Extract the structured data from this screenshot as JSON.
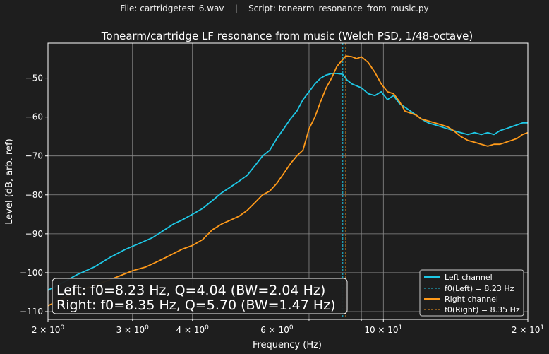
{
  "suptitle": "File: cartridgetest_6.wav    |    Script: tonearm_resonance_from_music.py",
  "chart_data": {
    "type": "line",
    "title": "Tonearm/cartridge LF resonance from music (Welch PSD, 1/48-octave)",
    "xlabel": "Frequency (Hz)",
    "ylabel": "Level (dB, arb. ref)",
    "xscale": "log",
    "xlim": [
      2,
      20
    ],
    "ylim": [
      -112,
      -41
    ],
    "grid": true,
    "x_major_ticks": [
      {
        "value": 2,
        "base": "2",
        "exp": "0"
      },
      {
        "value": 10,
        "base": "10",
        "exp": "1"
      },
      {
        "value": 20,
        "base": "2",
        "exp": "1"
      }
    ],
    "x_minor_ticks": [
      {
        "value": 3,
        "base": "3",
        "exp": "0"
      },
      {
        "value": 4,
        "base": "4",
        "exp": "0"
      },
      {
        "value": 6,
        "base": "6",
        "exp": "0"
      }
    ],
    "x_minor_unlabeled": [
      5,
      7,
      8,
      9
    ],
    "y_ticks": [
      -110,
      -100,
      -90,
      -80,
      -70,
      -60,
      -50
    ],
    "series": [
      {
        "name": "Left channel",
        "color": "#1ec8e6",
        "x": [
          2.0,
          2.15,
          2.3,
          2.5,
          2.7,
          2.9,
          3.1,
          3.3,
          3.5,
          3.65,
          3.8,
          4.0,
          4.2,
          4.4,
          4.6,
          4.8,
          5.0,
          5.2,
          5.4,
          5.6,
          5.8,
          6.0,
          6.2,
          6.4,
          6.6,
          6.8,
          7.0,
          7.2,
          7.4,
          7.6,
          7.8,
          8.0,
          8.23,
          8.4,
          8.6,
          8.8,
          9.0,
          9.3,
          9.6,
          9.9,
          10.2,
          10.5,
          10.8,
          11.1,
          11.4,
          11.7,
          12.0,
          12.4,
          12.8,
          13.2,
          13.6,
          14.0,
          14.5,
          15.0,
          15.5,
          16.0,
          16.5,
          17.0,
          17.5,
          18.0,
          18.5,
          19.0,
          19.5,
          20.0
        ],
        "y": [
          -104.5,
          -102.5,
          -100.5,
          -98.5,
          -96.0,
          -94.0,
          -92.5,
          -91.0,
          -89.0,
          -87.5,
          -86.5,
          -85.0,
          -83.5,
          -81.5,
          -79.5,
          -78.0,
          -76.5,
          -75.0,
          -72.5,
          -70.0,
          -68.5,
          -65.5,
          -63.0,
          -60.5,
          -58.5,
          -55.5,
          -53.5,
          -51.5,
          -50.0,
          -49.2,
          -48.8,
          -48.8,
          -49.0,
          -50.5,
          -51.5,
          -52.0,
          -52.5,
          -54.0,
          -54.5,
          -53.5,
          -55.5,
          -54.5,
          -56.5,
          -57.5,
          -58.5,
          -59.5,
          -60.5,
          -61.5,
          -62.0,
          -62.5,
          -63.0,
          -63.5,
          -64.0,
          -64.5,
          -64.0,
          -64.5,
          -64.0,
          -64.5,
          -63.5,
          -63.0,
          -62.5,
          -62.0,
          -61.5,
          -61.5
        ]
      },
      {
        "name": "Right channel",
        "color": "#ff9a1a",
        "x": [
          2.0,
          2.2,
          2.4,
          2.6,
          2.8,
          3.0,
          3.2,
          3.4,
          3.6,
          3.8,
          4.0,
          4.2,
          4.4,
          4.6,
          4.8,
          5.0,
          5.2,
          5.4,
          5.6,
          5.8,
          6.0,
          6.2,
          6.4,
          6.6,
          6.8,
          7.0,
          7.2,
          7.4,
          7.6,
          7.8,
          8.0,
          8.35,
          8.6,
          8.8,
          9.0,
          9.3,
          9.6,
          9.9,
          10.2,
          10.5,
          10.8,
          11.1,
          11.4,
          11.7,
          12.0,
          12.4,
          12.8,
          13.2,
          13.6,
          14.0,
          14.5,
          15.0,
          15.5,
          16.0,
          16.5,
          17.0,
          17.5,
          18.0,
          18.5,
          19.0,
          19.5,
          20.0
        ],
        "y": [
          -108.5,
          -106.0,
          -104.0,
          -102.5,
          -101.0,
          -99.5,
          -98.5,
          -97.0,
          -95.5,
          -94.0,
          -93.0,
          -91.5,
          -89.0,
          -87.5,
          -86.5,
          -85.5,
          -84.0,
          -82.0,
          -80.0,
          -79.0,
          -77.0,
          -74.5,
          -72.0,
          -70.0,
          -68.5,
          -63.0,
          -60.0,
          -56.0,
          -52.5,
          -50.0,
          -47.0,
          -44.3,
          -44.5,
          -45.0,
          -44.5,
          -46.0,
          -48.5,
          -51.5,
          -53.5,
          -54.0,
          -56.0,
          -58.5,
          -59.0,
          -59.5,
          -60.5,
          -61.0,
          -61.5,
          -62.0,
          -62.5,
          -63.5,
          -65.0,
          -66.0,
          -66.5,
          -67.0,
          -67.5,
          -67.0,
          -67.0,
          -66.5,
          -66.0,
          -65.5,
          -64.5,
          -64.0
        ]
      }
    ],
    "vlines": [
      {
        "x": 8.23,
        "color": "#1ec8e6",
        "label": "f0(Left) = 8.23 Hz"
      },
      {
        "x": 8.35,
        "color": "#ff9a1a",
        "label": "f0(Right) = 8.35 Hz"
      }
    ],
    "legend_position": "lower-right",
    "annotation": {
      "lines": [
        "Left: f0=8.23 Hz, Q=4.04 (BW=2.04 Hz)",
        "Right: f0=8.35 Hz, Q=5.70 (BW=1.47 Hz)"
      ],
      "position": "lower-left"
    }
  }
}
